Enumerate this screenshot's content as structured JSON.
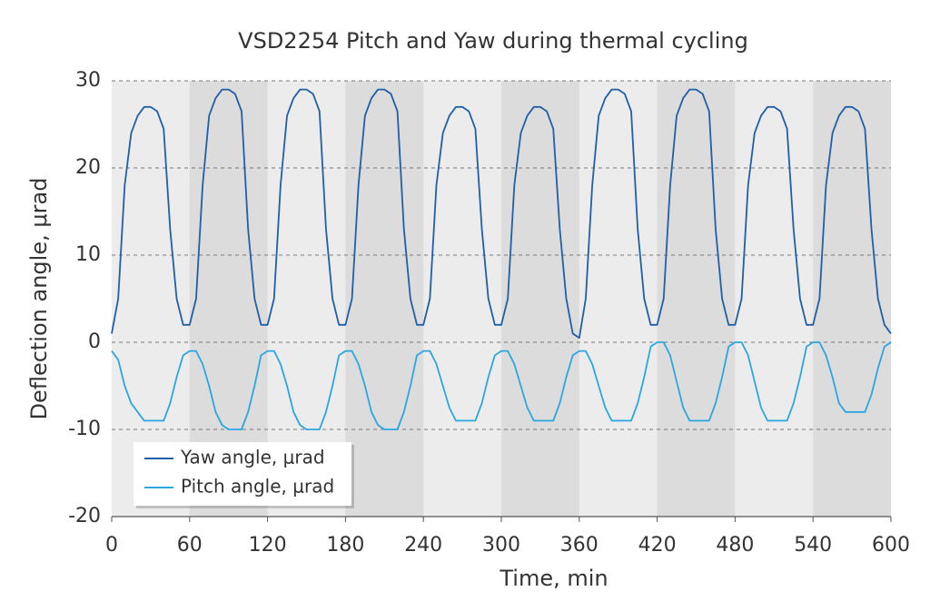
{
  "chart_data": {
    "type": "line",
    "title": "VSD2254 Pitch and Yaw during thermal cycling",
    "x_label": "Time, min",
    "y_label": "Deflection angle, μrad",
    "x": [
      0,
      5,
      10,
      15,
      20,
      25,
      30,
      35,
      40,
      45,
      50,
      55,
      60,
      65,
      70,
      75,
      80,
      85,
      90,
      95,
      100,
      105,
      110,
      115,
      120,
      125,
      130,
      135,
      140,
      145,
      150,
      155,
      160,
      165,
      170,
      175,
      180,
      185,
      190,
      195,
      200,
      205,
      210,
      215,
      220,
      225,
      230,
      235,
      240,
      245,
      250,
      255,
      260,
      265,
      270,
      275,
      280,
      285,
      290,
      295,
      300,
      305,
      310,
      315,
      320,
      325,
      330,
      335,
      340,
      345,
      350,
      355,
      360,
      365,
      370,
      375,
      380,
      385,
      390,
      395,
      400,
      405,
      410,
      415,
      420,
      425,
      430,
      435,
      440,
      445,
      450,
      455,
      460,
      465,
      470,
      475,
      480,
      485,
      490,
      495,
      500,
      505,
      510,
      515,
      520,
      525,
      530,
      535,
      540,
      545,
      550,
      555,
      560,
      565,
      570,
      575,
      580,
      585,
      590,
      595,
      600
    ],
    "series": [
      {
        "name": "Yaw angle, μrad",
        "color": "#1f5fa8",
        "values": [
          1,
          5,
          18,
          24,
          26,
          27,
          27,
          26.5,
          24.5,
          13,
          5,
          2,
          2,
          5,
          18,
          26,
          28,
          29,
          29,
          28.5,
          26.5,
          13,
          5,
          2,
          2,
          5,
          18,
          26,
          28,
          29,
          29,
          28.5,
          26.5,
          13,
          5,
          2,
          2,
          5,
          18,
          26,
          28,
          29,
          29,
          28.5,
          26.5,
          13,
          5,
          2,
          2,
          5,
          18,
          24,
          26,
          27,
          27,
          26.5,
          24.5,
          13,
          5,
          2,
          2,
          5,
          18,
          24,
          26,
          27,
          27,
          26.5,
          24.5,
          13,
          5,
          1,
          0.5,
          5,
          18,
          26,
          28,
          29,
          29,
          28.5,
          26.5,
          13,
          5,
          2,
          2,
          5,
          18,
          26,
          28,
          29,
          29,
          28.5,
          26.5,
          13,
          5,
          2,
          2,
          5,
          18,
          24,
          26,
          27,
          27,
          26.5,
          24.5,
          13,
          5,
          2,
          2,
          5,
          18,
          24,
          26,
          27,
          27,
          26.5,
          24.5,
          13,
          5,
          2,
          1
        ]
      },
      {
        "name": "Pitch angle, μrad",
        "color": "#2aa7e1",
        "values": [
          -1,
          -2,
          -5,
          -7,
          -8,
          -9,
          -9,
          -9,
          -9,
          -7,
          -4,
          -1.5,
          -1,
          -1,
          -2.5,
          -5,
          -8,
          -9.5,
          -10,
          -10,
          -10,
          -8,
          -5,
          -1.5,
          -1,
          -1,
          -2.5,
          -5,
          -8,
          -9.5,
          -10,
          -10,
          -10,
          -8,
          -5,
          -1.5,
          -1,
          -1,
          -2.5,
          -5,
          -8,
          -9.5,
          -10,
          -10,
          -10,
          -8,
          -5,
          -1.5,
          -1,
          -1,
          -2.5,
          -5,
          -7.5,
          -9,
          -9,
          -9,
          -9,
          -7,
          -4,
          -1.5,
          -1,
          -1,
          -2.5,
          -5,
          -7.5,
          -9,
          -9,
          -9,
          -9,
          -7,
          -4,
          -1.5,
          -1,
          -1,
          -2.5,
          -5,
          -7.5,
          -9,
          -9,
          -9,
          -9,
          -7,
          -4,
          -0.5,
          0,
          0,
          -1.5,
          -4.5,
          -7.5,
          -9,
          -9,
          -9,
          -9,
          -7,
          -4,
          -0.5,
          0,
          0,
          -1.5,
          -4.5,
          -7.5,
          -9,
          -9,
          -9,
          -9,
          -7,
          -4,
          -0.5,
          0,
          0,
          -1.5,
          -4,
          -7,
          -8,
          -8,
          -8,
          -8,
          -6,
          -3,
          -0.5,
          0
        ]
      }
    ],
    "xlim": [
      0,
      600
    ],
    "xticks": [
      0,
      60,
      120,
      180,
      240,
      300,
      360,
      420,
      480,
      540,
      600
    ],
    "ylim": [
      -20,
      30
    ],
    "yticks": [
      -20,
      -10,
      0,
      10,
      20,
      30
    ],
    "grid": true,
    "alternate_shading": true,
    "legend": "lower left"
  }
}
